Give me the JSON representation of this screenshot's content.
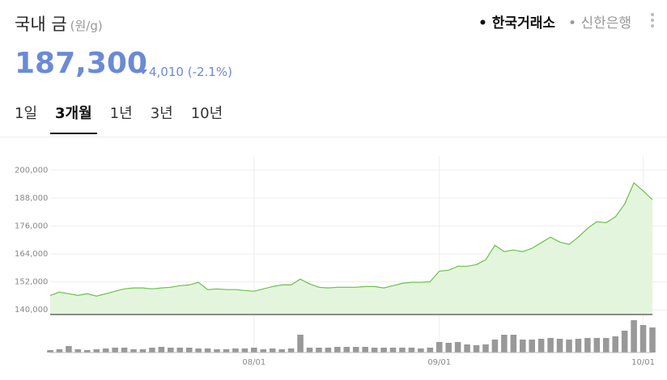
{
  "header": {
    "title": "국내 금",
    "unit": "(원/g)",
    "sources": [
      "한국거래소",
      "신한은행"
    ],
    "active_source": 0,
    "price": "187,300",
    "change": "4,010",
    "change_pct": "(-2.1%)"
  },
  "tabs": {
    "items": [
      "1일",
      "3개월",
      "1년",
      "3년",
      "10년"
    ],
    "active": 1
  },
  "chart_data": {
    "type": "area",
    "color": "#6cc04a",
    "fill_color": "#e3f6dd",
    "categories": [
      null,
      null,
      null,
      null,
      null,
      null,
      null,
      null,
      null,
      null,
      null,
      null,
      null,
      null,
      null,
      null,
      null,
      null,
      null,
      null,
      null,
      null,
      "08/01",
      null,
      null,
      null,
      null,
      null,
      null,
      null,
      null,
      null,
      null,
      null,
      null,
      null,
      null,
      null,
      null,
      null,
      null,
      null,
      "09/01",
      null,
      null,
      null,
      null,
      null,
      null,
      null,
      null,
      null,
      null,
      null,
      null,
      null,
      null,
      null,
      null,
      null,
      null,
      null,
      null,
      null,
      "10/01",
      null
    ],
    "values": [
      146200,
      147600,
      146900,
      146200,
      146900,
      145900,
      146900,
      148000,
      149000,
      149400,
      149400,
      149000,
      149400,
      149700,
      150400,
      150700,
      151800,
      148700,
      149000,
      148700,
      148700,
      148300,
      148000,
      149000,
      150000,
      150700,
      150700,
      153200,
      151100,
      149700,
      149400,
      149700,
      149700,
      149700,
      150000,
      150000,
      149400,
      150400,
      151400,
      151800,
      151800,
      152100,
      156600,
      157000,
      158700,
      158700,
      159400,
      161500,
      167700,
      165000,
      165700,
      165000,
      166400,
      168800,
      171200,
      169100,
      168100,
      171200,
      175000,
      177800,
      177400,
      179900,
      185400,
      194500,
      191000,
      187300
    ],
    "ylim": [
      138000,
      206000
    ],
    "yticks": [
      {
        "value": 140000,
        "label": "140,000"
      },
      {
        "value": 152000,
        "label": "152,000"
      },
      {
        "value": 164000,
        "label": "164,000"
      },
      {
        "value": 176000,
        "label": "176,000"
      },
      {
        "value": 188000,
        "label": "188,000"
      },
      {
        "value": 200000,
        "label": "200,000"
      }
    ],
    "grid": true,
    "volume": {
      "color": "#999999",
      "ylim": [
        0,
        45
      ],
      "values": [
        3,
        4,
        8,
        4,
        3,
        4,
        5,
        6,
        6,
        4,
        4,
        6,
        7,
        6,
        6,
        6,
        5,
        5,
        4,
        4,
        5,
        5,
        6,
        4,
        5,
        4,
        5,
        22,
        6,
        6,
        6,
        7,
        7,
        7,
        7,
        6,
        6,
        6,
        6,
        6,
        5,
        6,
        13,
        12,
        13,
        10,
        9,
        10,
        16,
        22,
        22,
        16,
        16,
        17,
        18,
        17,
        16,
        17,
        18,
        18,
        18,
        20,
        27,
        40,
        34,
        31
      ]
    }
  }
}
